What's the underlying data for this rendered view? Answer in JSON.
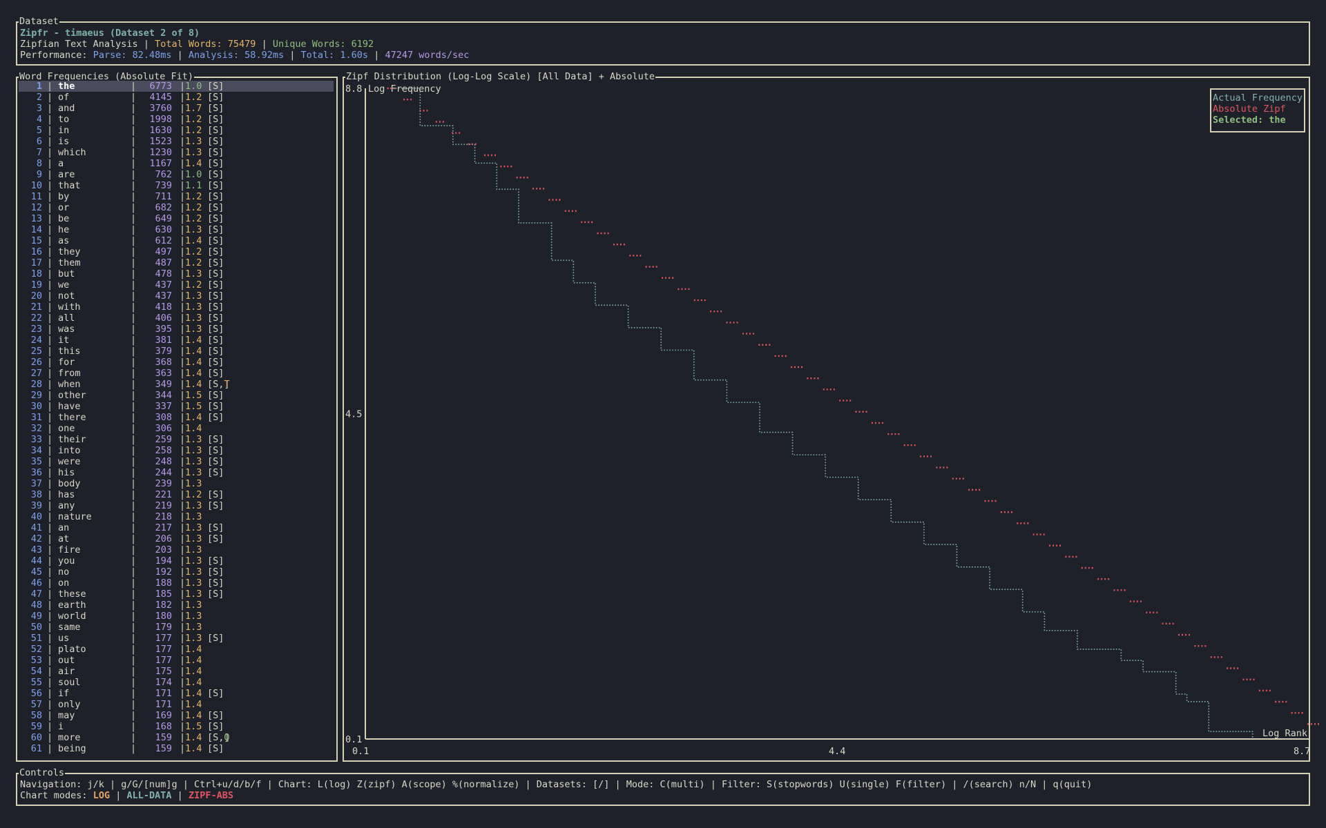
{
  "dataset_panel": {
    "title": "Dataset",
    "app_title": "Zipfr - timaeus (Dataset 2 of 8)",
    "analysis_label": "Zipfian Text Analysis",
    "total_words_label": "Total Words: 75479",
    "unique_words_label": "Unique Words: 6192",
    "performance_label": "Performance:",
    "parse": "Parse: 82.48ms",
    "analysis": "Analysis: 58.92ms",
    "total": "Total: 1.60s",
    "speed": "47247 words/sec",
    "sep": "|"
  },
  "word_panel": {
    "title": "Word Frequencies (Absolute Fit)",
    "bar": "|",
    "rows": [
      {
        "rank": "1",
        "word": "the",
        "freq": "6773",
        "ratio": "1.0",
        "tags": "[S]",
        "rc": "green"
      },
      {
        "rank": "2",
        "word": "of",
        "freq": "4145",
        "ratio": "1.2",
        "tags": "[S]",
        "rc": "gold"
      },
      {
        "rank": "3",
        "word": "and",
        "freq": "3760",
        "ratio": "1.7",
        "tags": "[S]",
        "rc": "gold"
      },
      {
        "rank": "4",
        "word": "to",
        "freq": "1998",
        "ratio": "1.2",
        "tags": "[S]",
        "rc": "gold"
      },
      {
        "rank": "5",
        "word": "in",
        "freq": "1630",
        "ratio": "1.2",
        "tags": "[S]",
        "rc": "gold"
      },
      {
        "rank": "6",
        "word": "is",
        "freq": "1523",
        "ratio": "1.3",
        "tags": "[S]",
        "rc": "gold"
      },
      {
        "rank": "7",
        "word": "which",
        "freq": "1230",
        "ratio": "1.3",
        "tags": "[S]",
        "rc": "gold"
      },
      {
        "rank": "8",
        "word": "a",
        "freq": "1167",
        "ratio": "1.4",
        "tags": "[S]",
        "rc": "gold"
      },
      {
        "rank": "9",
        "word": "are",
        "freq": "762",
        "ratio": "1.0",
        "tags": "[S]",
        "rc": "green"
      },
      {
        "rank": "10",
        "word": "that",
        "freq": "739",
        "ratio": "1.1",
        "tags": "[S]",
        "rc": "green"
      },
      {
        "rank": "11",
        "word": "by",
        "freq": "711",
        "ratio": "1.2",
        "tags": "[S]",
        "rc": "gold"
      },
      {
        "rank": "12",
        "word": "or",
        "freq": "682",
        "ratio": "1.2",
        "tags": "[S]",
        "rc": "gold"
      },
      {
        "rank": "13",
        "word": "be",
        "freq": "649",
        "ratio": "1.2",
        "tags": "[S]",
        "rc": "gold"
      },
      {
        "rank": "14",
        "word": "he",
        "freq": "630",
        "ratio": "1.3",
        "tags": "[S]",
        "rc": "gold"
      },
      {
        "rank": "15",
        "word": "as",
        "freq": "612",
        "ratio": "1.4",
        "tags": "[S]",
        "rc": "gold"
      },
      {
        "rank": "16",
        "word": "they",
        "freq": "497",
        "ratio": "1.2",
        "tags": "[S]",
        "rc": "gold"
      },
      {
        "rank": "17",
        "word": "them",
        "freq": "487",
        "ratio": "1.2",
        "tags": "[S]",
        "rc": "gold"
      },
      {
        "rank": "18",
        "word": "but",
        "freq": "478",
        "ratio": "1.3",
        "tags": "[S]",
        "rc": "gold"
      },
      {
        "rank": "19",
        "word": "we",
        "freq": "437",
        "ratio": "1.2",
        "tags": "[S]",
        "rc": "gold"
      },
      {
        "rank": "20",
        "word": "not",
        "freq": "437",
        "ratio": "1.3",
        "tags": "[S]",
        "rc": "gold"
      },
      {
        "rank": "21",
        "word": "with",
        "freq": "418",
        "ratio": "1.3",
        "tags": "[S]",
        "rc": "gold"
      },
      {
        "rank": "22",
        "word": "all",
        "freq": "406",
        "ratio": "1.3",
        "tags": "[S]",
        "rc": "gold"
      },
      {
        "rank": "23",
        "word": "was",
        "freq": "395",
        "ratio": "1.3",
        "tags": "[S]",
        "rc": "gold"
      },
      {
        "rank": "24",
        "word": "it",
        "freq": "381",
        "ratio": "1.4",
        "tags": "[S]",
        "rc": "gold"
      },
      {
        "rank": "25",
        "word": "this",
        "freq": "379",
        "ratio": "1.4",
        "tags": "[S]",
        "rc": "gold"
      },
      {
        "rank": "26",
        "word": "for",
        "freq": "368",
        "ratio": "1.4",
        "tags": "[S]",
        "rc": "gold"
      },
      {
        "rank": "27",
        "word": "from",
        "freq": "363",
        "ratio": "1.4",
        "tags": "[S]",
        "rc": "gold"
      },
      {
        "rank": "28",
        "word": "when",
        "freq": "349",
        "ratio": "1.4",
        "tags": "[S,T]",
        "rc": "gold"
      },
      {
        "rank": "29",
        "word": "other",
        "freq": "344",
        "ratio": "1.5",
        "tags": "[S]",
        "rc": "gold"
      },
      {
        "rank": "30",
        "word": "have",
        "freq": "337",
        "ratio": "1.5",
        "tags": "[S]",
        "rc": "gold"
      },
      {
        "rank": "31",
        "word": "there",
        "freq": "308",
        "ratio": "1.4",
        "tags": "[S]",
        "rc": "gold"
      },
      {
        "rank": "32",
        "word": "one",
        "freq": "306",
        "ratio": "1.4",
        "tags": "",
        "rc": "gold"
      },
      {
        "rank": "33",
        "word": "their",
        "freq": "259",
        "ratio": "1.3",
        "tags": "[S]",
        "rc": "gold"
      },
      {
        "rank": "34",
        "word": "into",
        "freq": "258",
        "ratio": "1.3",
        "tags": "[S]",
        "rc": "gold"
      },
      {
        "rank": "35",
        "word": "were",
        "freq": "248",
        "ratio": "1.3",
        "tags": "[S]",
        "rc": "gold"
      },
      {
        "rank": "36",
        "word": "his",
        "freq": "244",
        "ratio": "1.3",
        "tags": "[S]",
        "rc": "gold"
      },
      {
        "rank": "37",
        "word": "body",
        "freq": "239",
        "ratio": "1.3",
        "tags": "",
        "rc": "gold"
      },
      {
        "rank": "38",
        "word": "has",
        "freq": "221",
        "ratio": "1.2",
        "tags": "[S]",
        "rc": "gold"
      },
      {
        "rank": "39",
        "word": "any",
        "freq": "219",
        "ratio": "1.3",
        "tags": "[S]",
        "rc": "gold"
      },
      {
        "rank": "40",
        "word": "nature",
        "freq": "218",
        "ratio": "1.3",
        "tags": "",
        "rc": "gold"
      },
      {
        "rank": "41",
        "word": "an",
        "freq": "217",
        "ratio": "1.3",
        "tags": "[S]",
        "rc": "gold"
      },
      {
        "rank": "42",
        "word": "at",
        "freq": "206",
        "ratio": "1.3",
        "tags": "[S]",
        "rc": "gold"
      },
      {
        "rank": "43",
        "word": "fire",
        "freq": "203",
        "ratio": "1.3",
        "tags": "",
        "rc": "gold"
      },
      {
        "rank": "44",
        "word": "you",
        "freq": "194",
        "ratio": "1.3",
        "tags": "[S]",
        "rc": "gold"
      },
      {
        "rank": "45",
        "word": "no",
        "freq": "192",
        "ratio": "1.3",
        "tags": "[S]",
        "rc": "gold"
      },
      {
        "rank": "46",
        "word": "on",
        "freq": "188",
        "ratio": "1.3",
        "tags": "[S]",
        "rc": "gold"
      },
      {
        "rank": "47",
        "word": "these",
        "freq": "185",
        "ratio": "1.3",
        "tags": "[S]",
        "rc": "gold"
      },
      {
        "rank": "48",
        "word": "earth",
        "freq": "182",
        "ratio": "1.3",
        "tags": "",
        "rc": "gold"
      },
      {
        "rank": "49",
        "word": "world",
        "freq": "180",
        "ratio": "1.3",
        "tags": "",
        "rc": "gold"
      },
      {
        "rank": "50",
        "word": "same",
        "freq": "179",
        "ratio": "1.3",
        "tags": "",
        "rc": "gold"
      },
      {
        "rank": "51",
        "word": "us",
        "freq": "177",
        "ratio": "1.3",
        "tags": "[S]",
        "rc": "gold"
      },
      {
        "rank": "52",
        "word": "plato",
        "freq": "177",
        "ratio": "1.4",
        "tags": "",
        "rc": "gold"
      },
      {
        "rank": "53",
        "word": "out",
        "freq": "177",
        "ratio": "1.4",
        "tags": "",
        "rc": "gold"
      },
      {
        "rank": "54",
        "word": "air",
        "freq": "175",
        "ratio": "1.4",
        "tags": "",
        "rc": "gold"
      },
      {
        "rank": "55",
        "word": "soul",
        "freq": "174",
        "ratio": "1.4",
        "tags": "",
        "rc": "gold"
      },
      {
        "rank": "56",
        "word": "if",
        "freq": "171",
        "ratio": "1.4",
        "tags": "[S]",
        "rc": "gold"
      },
      {
        "rank": "57",
        "word": "only",
        "freq": "171",
        "ratio": "1.4",
        "tags": "",
        "rc": "gold"
      },
      {
        "rank": "58",
        "word": "may",
        "freq": "169",
        "ratio": "1.4",
        "tags": "[S]",
        "rc": "gold"
      },
      {
        "rank": "59",
        "word": "i",
        "freq": "168",
        "ratio": "1.5",
        "tags": "[S]",
        "rc": "gold"
      },
      {
        "rank": "60",
        "word": "more",
        "freq": "159",
        "ratio": "1.4",
        "tags": "[S,Q]",
        "rc": "gold"
      },
      {
        "rank": "61",
        "word": "being",
        "freq": "159",
        "ratio": "1.4",
        "tags": "[S]",
        "rc": "gold"
      }
    ]
  },
  "chart_panel": {
    "title": "Zipf Distribution (Log-Log Scale) [All Data] + Absolute",
    "legend": {
      "actual": "Actual Frequency",
      "zipf": "Absolute Zipf",
      "selected": "Selected: the"
    }
  },
  "chart_data": {
    "type": "line",
    "title": "Zipf Distribution (Log-Log Scale) [All Data] + Absolute",
    "xlabel": "Log Rank",
    "ylabel": "Log Frequency",
    "xlim": [
      0.1,
      8.7
    ],
    "ylim": [
      0.1,
      8.8
    ],
    "x_ticks": [
      "0.1",
      "4.4",
      "8.7"
    ],
    "y_ticks": [
      "8.8",
      "4.5",
      "0.1"
    ],
    "legend_position": "top-right",
    "series": [
      {
        "name": "Actual Frequency",
        "color": "#7fb3aa",
        "style": "dotted",
        "points": [
          [
            0.3,
            8.8
          ],
          [
            0.6,
            8.3
          ],
          [
            0.9,
            8.05
          ],
          [
            1.1,
            7.8
          ],
          [
            1.3,
            7.45
          ],
          [
            1.5,
            7.0
          ],
          [
            1.8,
            6.5
          ],
          [
            2.0,
            6.2
          ],
          [
            2.2,
            5.9
          ],
          [
            2.5,
            5.6
          ],
          [
            2.8,
            5.3
          ],
          [
            3.1,
            4.9
          ],
          [
            3.4,
            4.6
          ],
          [
            3.7,
            4.2
          ],
          [
            4.0,
            3.9
          ],
          [
            4.3,
            3.6
          ],
          [
            4.6,
            3.3
          ],
          [
            4.9,
            3.0
          ],
          [
            5.2,
            2.7
          ],
          [
            5.5,
            2.4
          ],
          [
            5.8,
            2.1
          ],
          [
            6.1,
            1.8
          ],
          [
            6.3,
            1.55
          ],
          [
            6.6,
            1.3
          ],
          [
            7.0,
            1.15
          ],
          [
            7.2,
            1.0
          ],
          [
            7.5,
            0.7
          ],
          [
            7.6,
            0.6
          ],
          [
            7.8,
            0.5
          ],
          [
            7.8,
            0.2
          ],
          [
            8.2,
            0.1
          ]
        ]
      },
      {
        "name": "Absolute Zipf",
        "color": "#e05561",
        "style": "dotted",
        "points": [
          [
            0.3,
            8.8
          ],
          [
            8.7,
            0.3
          ]
        ]
      }
    ],
    "selected": {
      "word": "the",
      "x": 0.3,
      "y": 8.8
    }
  },
  "controls_panel": {
    "title": "Controls",
    "nav": "Navigation: j/k | g/G/[num]g | Ctrl+u/d/b/f | Chart: L(log) Z(zipf) A(scope) %(normalize) | Datasets: [/] | Mode: C(multi) | Filter: S(stopwords) U(single) F(filter) | /(search) n/N | q(quit)",
    "modes_label": "Chart modes:",
    "mode_log": "LOG",
    "mode_data": "ALL-DATA",
    "mode_zipf": "ZIPF-ABS",
    "sep": "|"
  },
  "colors": {
    "background": "#1f212a",
    "border": "#d8d2b4",
    "teal": "#7fb3aa",
    "red": "#e05561",
    "gold": "#e5b567",
    "green": "#8fbf7f",
    "blue": "#7ea2e8",
    "purple": "#b49be6"
  }
}
